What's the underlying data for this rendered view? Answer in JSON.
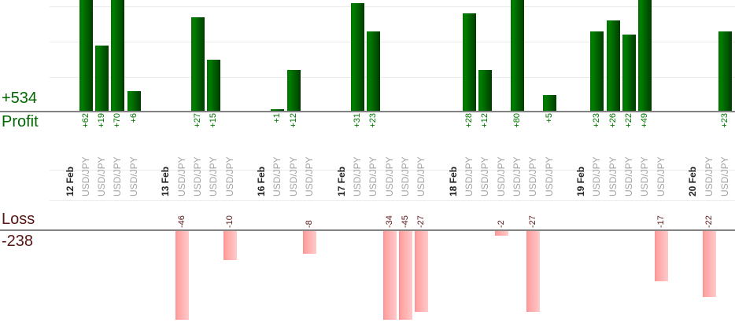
{
  "chart_data": {
    "type": "bar",
    "description": "Per-trade profit and loss report grouped by day, split into an upper profit pane and a lower loss pane",
    "profit_section": {
      "total_label": "+534",
      "axis_label": "Profit",
      "total": 534,
      "bar_color": "#006600",
      "value_label_color": "#007700",
      "visible_axis_max": 31,
      "gridline_values": [
        10,
        20,
        30
      ],
      "note": "bars taller than visible max are clipped at image top"
    },
    "loss_section": {
      "total_label": "-238",
      "axis_label": "Loss",
      "total": -238,
      "bar_color": "#ff9f9f",
      "value_label_color": "#5a1a1a",
      "visible_axis_min": -29,
      "gridline_values": [
        -10,
        -20
      ],
      "note": "bars deeper than visible min are clipped at image bottom"
    },
    "legend_position": "left",
    "grid": true,
    "groups": [
      {
        "date": "12 Feb",
        "trades": [
          {
            "symbol": "USD/JPY",
            "value": 62,
            "label": "+62"
          },
          {
            "symbol": "USD/JPY",
            "value": 19,
            "label": "+19"
          },
          {
            "symbol": "USD/JPY",
            "value": 70,
            "label": "+70"
          },
          {
            "symbol": "USD/JPY",
            "value": 6,
            "label": "+6"
          }
        ]
      },
      {
        "date": "13 Feb",
        "trades": [
          {
            "symbol": "USD/JPY",
            "value": -46,
            "label": "-46"
          },
          {
            "symbol": "USD/JPY",
            "value": 27,
            "label": "+27"
          },
          {
            "symbol": "USD/JPY",
            "value": 15,
            "label": "+15"
          },
          {
            "symbol": "USD/JPY",
            "value": -10,
            "label": "-10"
          }
        ]
      },
      {
        "date": "16 Feb",
        "trades": [
          {
            "symbol": "USD/JPY",
            "value": 1,
            "label": "+1"
          },
          {
            "symbol": "USD/JPY",
            "value": 12,
            "label": "+12"
          },
          {
            "symbol": "USD/JPY",
            "value": -8,
            "label": "-8"
          }
        ]
      },
      {
        "date": "17 Feb",
        "trades": [
          {
            "symbol": "USD/JPY",
            "value": 31,
            "label": "+31"
          },
          {
            "symbol": "USD/JPY",
            "value": 23,
            "label": "+23"
          },
          {
            "symbol": "USD/JPY",
            "value": -34,
            "label": "-34"
          },
          {
            "symbol": "USD/JPY",
            "value": -45,
            "label": "-45"
          },
          {
            "symbol": "USD/JPY",
            "value": -27,
            "label": "-27"
          }
        ]
      },
      {
        "date": "18 Feb",
        "trades": [
          {
            "symbol": "USD/JPY",
            "value": 28,
            "label": "+28"
          },
          {
            "symbol": "USD/JPY",
            "value": 12,
            "label": "+12"
          },
          {
            "symbol": "USD/JPY",
            "value": -2,
            "label": "-2"
          },
          {
            "symbol": "USD/JPY",
            "value": 80,
            "label": "+80"
          },
          {
            "symbol": "USD/JPY",
            "value": -27,
            "label": "-27"
          },
          {
            "symbol": "USD/JPY",
            "value": 5,
            "label": "+5"
          }
        ]
      },
      {
        "date": "19 Feb",
        "trades": [
          {
            "symbol": "USD/JPY",
            "value": 23,
            "label": "+23"
          },
          {
            "symbol": "USD/JPY",
            "value": 26,
            "label": "+26"
          },
          {
            "symbol": "USD/JPY",
            "value": 22,
            "label": "+22"
          },
          {
            "symbol": "USD/JPY",
            "value": 49,
            "label": "+49"
          },
          {
            "symbol": "USD/JPY",
            "value": -17,
            "label": "-17"
          }
        ]
      },
      {
        "date": "20 Feb",
        "trades": [
          {
            "symbol": "USD/JPY",
            "value": -22,
            "label": "-22"
          },
          {
            "symbol": "USD/JPY",
            "value": 23,
            "label": "+23"
          }
        ]
      }
    ]
  }
}
